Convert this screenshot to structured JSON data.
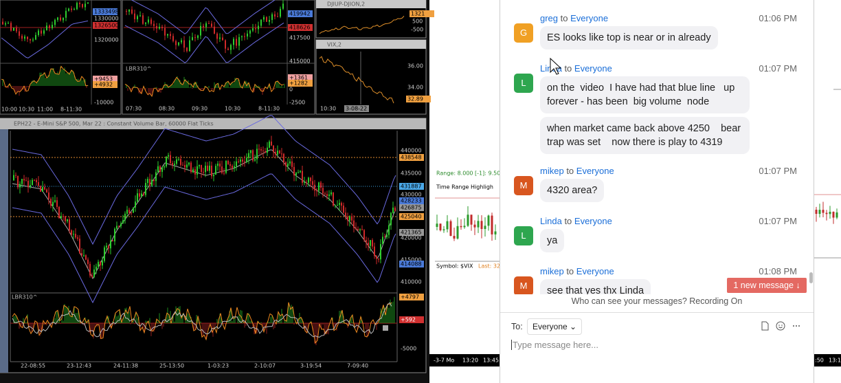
{
  "charts": {
    "window1": {
      "price_labels": [
        "1333498",
        "1330000",
        "1326500",
        "1320000",
        "+9453",
        "+4932",
        "-10000"
      ],
      "time_labels": [
        "10:00",
        "10:30",
        "11:00",
        "8-11:30"
      ]
    },
    "window2": {
      "indicator": "LBR310^",
      "price_labels": [
        "419942",
        "418626",
        "417500",
        "415000",
        "+1361",
        "+1282",
        "0",
        "-2500"
      ],
      "time_labels": [
        "07:30",
        "08:30",
        "09:30",
        "10:30",
        "8-11:30"
      ]
    },
    "djiup": {
      "title": "DJIUP-DJION,2",
      "price_labels": [
        "1321",
        "500",
        "-500"
      ]
    },
    "vix": {
      "title": "VIX,2",
      "price_labels": [
        "36.00",
        "34.00",
        "32.89"
      ],
      "time_labels": [
        "10:30",
        "3-08-22 11:26:30"
      ]
    },
    "main": {
      "title": "EPH22 - E-Mini S&P 500, Mar 22 : Constant Volume Bar, 60000 Flat Ticks",
      "indicator": "LBR310^",
      "price_labels": [
        "440000",
        "438548",
        "435000",
        "431887",
        "430000",
        "428233",
        "426875",
        "425040",
        "421365",
        "420000",
        "415000",
        "414088",
        "410000"
      ],
      "oscillator_labels": [
        "+4797",
        "+592",
        "-5000"
      ],
      "time_labels": [
        "22-08:55",
        "23-12:43",
        "24-11:38",
        "25-13:50",
        "1-03:23",
        "2-10:07",
        "3-19:54",
        "7-09:40"
      ]
    },
    "middle": {
      "range": "Range: 8.000  [-1]: 9.50",
      "highlight": "Time Range Highligh",
      "symbol": "Symbol: $VIX",
      "last": "Last: 32",
      "time_labels": [
        "-3-7 Mo",
        "13:20",
        "13:45"
      ]
    },
    "right": {
      "time_labels": [
        ":50",
        "13:1"
      ]
    }
  },
  "chat": {
    "messages": [
      {
        "avatar": "G",
        "avatar_color": "#f0a024",
        "sender": "greg",
        "to_word": "to",
        "recipient": "Everyone",
        "time": "01:06 PM",
        "bubbles": [
          "ES looks like top is near or in already"
        ]
      },
      {
        "avatar": "L",
        "avatar_color": "#2ea64f",
        "sender": "Linda",
        "to_word": "to",
        "recipient": "Everyone",
        "time": "01:07 PM",
        "bubbles": [
          "on the  video  I have had that blue line   up forever - has been  big volume  node",
          "when market came back above 4250    bear trap was set    now there is play to 4319"
        ]
      },
      {
        "avatar": "M",
        "avatar_color": "#d8561f",
        "sender": "mikep",
        "to_word": "to",
        "recipient": "Everyone",
        "time": "01:07 PM",
        "bubbles": [
          "4320 area?"
        ]
      },
      {
        "avatar": "L",
        "avatar_color": "#2ea64f",
        "sender": "Linda",
        "to_word": "to",
        "recipient": "Everyone",
        "time": "01:07 PM",
        "bubbles": [
          "ya"
        ]
      },
      {
        "avatar": "M",
        "avatar_color": "#d8561f",
        "sender": "mikep",
        "to_word": "to",
        "recipient": "Everyone",
        "time": "01:08 PM",
        "bubbles": [
          "see that yes thx Linda"
        ]
      }
    ],
    "new_message": "1 new message ↓",
    "visibility": "Who can see your messages? Recording On",
    "to_label": "To:",
    "recipient_select": "Everyone",
    "placeholder": "Type message here..."
  }
}
